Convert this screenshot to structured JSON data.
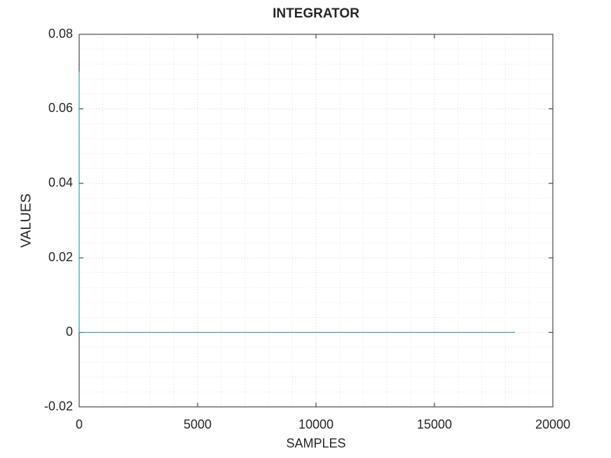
{
  "chart_data": {
    "type": "line",
    "title": "INTEGRATOR",
    "x_label": "SAMPLES",
    "y_label": "VALUES",
    "x": [
      0,
      1,
      18400
    ],
    "series": [
      {
        "name": "integrator",
        "color": "#1a8a8a",
        "values": [
          0.07,
          0,
          0
        ]
      }
    ],
    "xlim": [
      0,
      20000
    ],
    "xticks": [
      0,
      5000,
      10000,
      15000,
      20000
    ],
    "ylim": [
      -0.02,
      0.08
    ],
    "yticks": [
      -0.02,
      0,
      0.02,
      0.04,
      0.06,
      0.08
    ],
    "grid": true,
    "minor_grid": true,
    "legend": false
  }
}
